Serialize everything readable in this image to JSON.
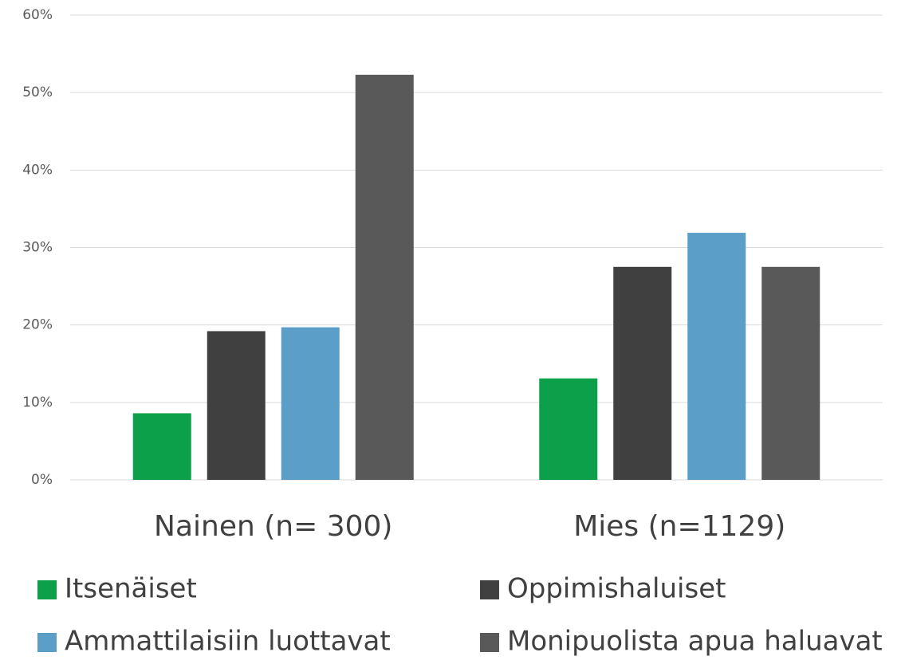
{
  "chart_data": {
    "type": "bar",
    "categories": [
      "Nainen (n= 300)",
      "Mies (n=1129)"
    ],
    "series": [
      {
        "name": "Itsenäiset",
        "color": "#0ca04a",
        "values": [
          8.6,
          13.1
        ]
      },
      {
        "name": "Oppimishaluiset",
        "color": "#404040",
        "values": [
          19.2,
          27.5
        ]
      },
      {
        "name": "Ammattilaisiin luottavat",
        "color": "#5b9fc8",
        "values": [
          19.7,
          31.9
        ]
      },
      {
        "name": "Monipuolista apua haluavat",
        "color": "#595959",
        "values": [
          52.3,
          27.5
        ]
      }
    ],
    "ylim": [
      0,
      60
    ],
    "yticks": [
      {
        "value": 0,
        "label": "0%"
      },
      {
        "value": 10,
        "label": "10%"
      },
      {
        "value": 20,
        "label": "20%"
      },
      {
        "value": 30,
        "label": "30%"
      },
      {
        "value": 40,
        "label": "40%"
      },
      {
        "value": 50,
        "label": "50%"
      },
      {
        "value": 60,
        "label": "60%"
      }
    ],
    "grid": true,
    "legend": "bottom"
  }
}
